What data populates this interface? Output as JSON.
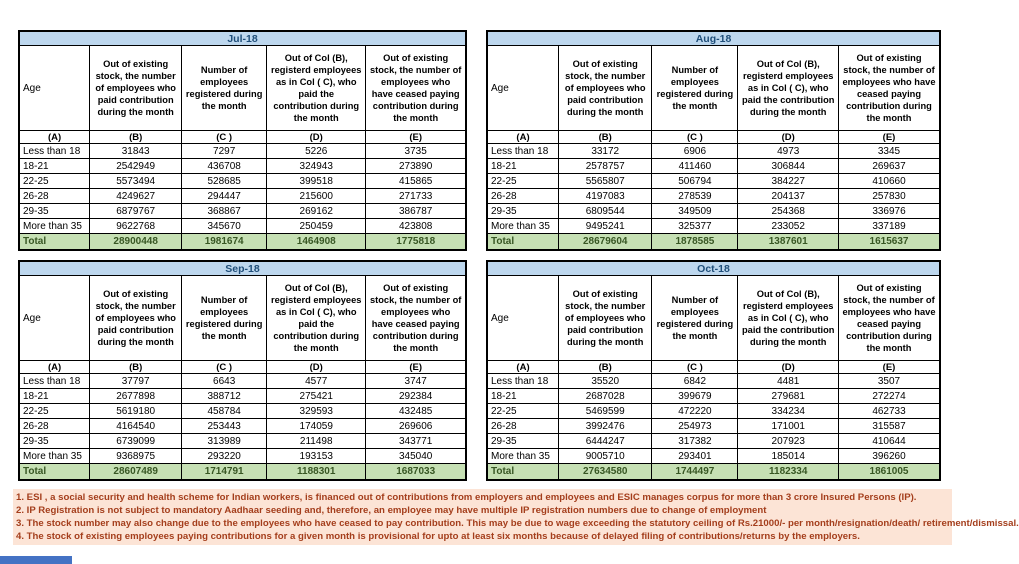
{
  "headers": {
    "age": "Age",
    "cols": [
      "Out of existing stock, the number of employees who paid contribution during the month",
      "Number of employees registered during the month",
      "Out of Col (B), registerd employees as in Col ( C), who paid the contribution during the month",
      "Out of existing stock, the number of  employees  who have ceased paying contribution during the month"
    ],
    "letters": [
      "(A)",
      "(B)",
      "(C )",
      "(D)",
      "(E)"
    ]
  },
  "tables": [
    {
      "month": "Jul-18",
      "rows": [
        [
          "Less than 18",
          "31843",
          "7297",
          "5226",
          "3735"
        ],
        [
          "18-21",
          "2542949",
          "436708",
          "324943",
          "273890"
        ],
        [
          "22-25",
          "5573494",
          "528685",
          "399518",
          "415865"
        ],
        [
          "26-28",
          "4249627",
          "294447",
          "215600",
          "271733"
        ],
        [
          "29-35",
          "6879767",
          "368867",
          "269162",
          "386787"
        ],
        [
          "More than 35",
          "9622768",
          "345670",
          "250459",
          "423808"
        ]
      ],
      "total": [
        "Total",
        "28900448",
        "1981674",
        "1464908",
        "1775818"
      ]
    },
    {
      "month": "Aug-18",
      "rows": [
        [
          "Less than 18",
          "33172",
          "6906",
          "4973",
          "3345"
        ],
        [
          "18-21",
          "2578757",
          "411460",
          "306844",
          "269637"
        ],
        [
          "22-25",
          "5565807",
          "506794",
          "384227",
          "410660"
        ],
        [
          "26-28",
          "4197083",
          "278539",
          "204137",
          "257830"
        ],
        [
          "29-35",
          "6809544",
          "349509",
          "254368",
          "336976"
        ],
        [
          "More than 35",
          "9495241",
          "325377",
          "233052",
          "337189"
        ]
      ],
      "total": [
        "Total",
        "28679604",
        "1878585",
        "1387601",
        "1615637"
      ]
    },
    {
      "month": "Sep-18",
      "rows": [
        [
          "Less than 18",
          "37797",
          "6643",
          "4577",
          "3747"
        ],
        [
          "18-21",
          "2677898",
          "388712",
          "275421",
          "292384"
        ],
        [
          "22-25",
          "5619180",
          "458784",
          "329593",
          "432485"
        ],
        [
          "26-28",
          "4164540",
          "253443",
          "174059",
          "269606"
        ],
        [
          "29-35",
          "6739099",
          "313989",
          "211498",
          "343771"
        ],
        [
          "More than 35",
          "9368975",
          "293220",
          "193153",
          "345040"
        ]
      ],
      "total": [
        "Total",
        "28607489",
        "1714791",
        "1188301",
        "1687033"
      ]
    },
    {
      "month": "Oct-18",
      "rows": [
        [
          "Less than 18",
          "35520",
          "6842",
          "4481",
          "3507"
        ],
        [
          "18-21",
          "2687028",
          "399679",
          "279681",
          "272274"
        ],
        [
          "22-25",
          "5469599",
          "472220",
          "334234",
          "462733"
        ],
        [
          "26-28",
          "3992476",
          "254973",
          "171001",
          "315587"
        ],
        [
          "29-35",
          "6444247",
          "317382",
          "207923",
          "410644"
        ],
        [
          "More than 35",
          "9005710",
          "293401",
          "185014",
          "396260"
        ]
      ],
      "total": [
        "Total",
        "27634580",
        "1744497",
        "1182334",
        "1861005"
      ]
    }
  ],
  "footnotes": [
    "1. ESI , a social security and health scheme for Indian workers, is financed out of contributions from employers and employees and ESIC manages corpus for more than 3 crore Insured Persons (IP).",
    "2. IP Registration is not subject to mandatory Aadhaar seeding and, therefore, an employee may have multiple IP registration numbers due to change of employment",
    "3. The stock number may also change due to the employees who have ceased to pay contribution. This may  be due to wage exceeding the statutory ceiling of  Rs.21000/- per month/resignation/death/ retirement/dismissal.",
    "4. The stock of existing employees paying contributions for a given month is provisional for upto at least six months because of delayed filing of contributions/returns by the employers."
  ],
  "colors": {
    "month_header_bg": "#bdd7ee",
    "month_header_text": "#1f4e79",
    "total_bg": "#c6e0b4",
    "total_text": "#375623",
    "footnote_bg": "#fce4d6",
    "footnote_text": "#a43e1c",
    "border": "#000000",
    "tab_fragment": "#4472c4"
  }
}
